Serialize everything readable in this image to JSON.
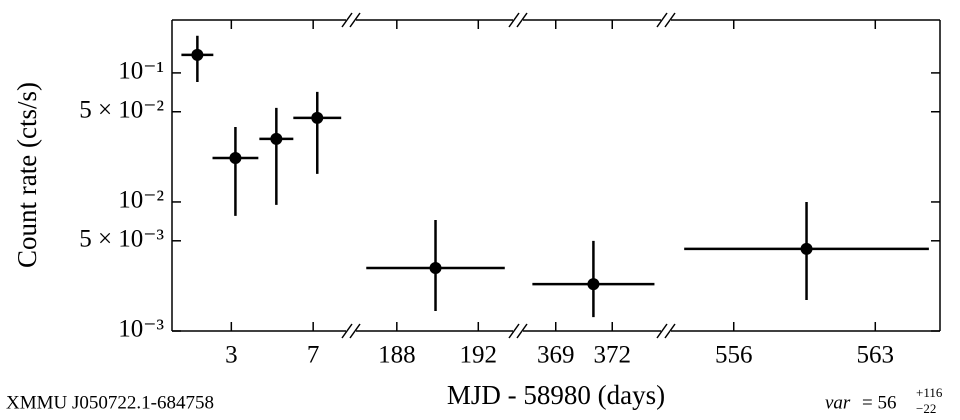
{
  "chart_data": {
    "type": "errorbar",
    "ylabel": "Count rate (cts/s)",
    "xlabel": "MJD - 58980 (days)",
    "log_y": true,
    "color": "#000000",
    "ylim": [
      0.001,
      0.257
    ],
    "yticks": [
      {
        "value": 0.1,
        "label": "10⁻¹"
      },
      {
        "value": 0.05,
        "label": "5 × 10⁻²"
      },
      {
        "value": 0.01,
        "label": "10⁻²"
      },
      {
        "value": 0.005,
        "label": "5 × 10⁻³"
      },
      {
        "value": 0.001,
        "label": "10⁻³"
      }
    ],
    "panels": [
      {
        "xlim": [
          0.1,
          8.8
        ],
        "xticks": [
          3,
          7
        ],
        "x": [
          1.34,
          3.2,
          5.2,
          7.2
        ],
        "x_err": [
          0.78,
          1.12,
          0.83,
          1.17
        ],
        "values": [
          0.138,
          0.0219,
          0.0308,
          0.0448
        ],
        "y_lower": [
          0.085,
          0.0078,
          0.0095,
          0.0165
        ],
        "y_upper": [
          0.194,
          0.0381,
          0.0536,
          0.0713
        ]
      },
      {
        "xlim": [
          185.8,
          193.9
        ],
        "xticks": [
          188,
          192
        ],
        "x": [
          189.9
        ],
        "x_err": [
          3.4
        ],
        "values": [
          0.00308
        ],
        "y_lower": [
          0.00143
        ],
        "y_upper": [
          0.00724
        ]
      },
      {
        "xlim": [
          367.05,
          374.8
        ],
        "xticks": [
          369,
          372
        ],
        "x": [
          371.0
        ],
        "x_err": [
          3.24
        ],
        "values": [
          0.00231
        ],
        "y_lower": [
          0.00128
        ],
        "y_upper": [
          0.00499
        ]
      },
      {
        "xlim": [
          552.7,
          566.2
        ],
        "xticks": [
          556,
          563
        ],
        "x": [
          559.6
        ],
        "x_err": [
          6.05
        ],
        "values": [
          0.00433
        ],
        "y_lower": [
          0.00174
        ],
        "y_upper": [
          0.01
        ]
      }
    ],
    "annotations": {
      "source": "XMMU J050722.1-684758",
      "var_name": "var",
      "var_value": "= 56",
      "var_upper": "+116",
      "var_lower": "−22"
    }
  }
}
